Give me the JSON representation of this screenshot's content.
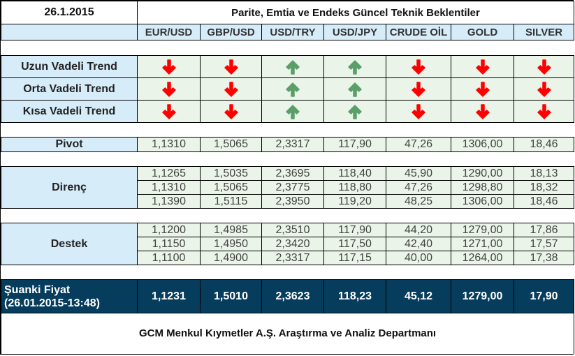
{
  "header": {
    "date": "26.1.2015",
    "title": "Parite, Emtia ve Endeks Güncel Teknik Beklentiler"
  },
  "columns": [
    "EUR/USD",
    "GBP/USD",
    "USD/TRY",
    "USD/JPY",
    "CRUDE OİL",
    "GOLD",
    "SILVER"
  ],
  "colors": {
    "label_bg": "#d7ecf9",
    "cell_bg": "#eaf4e8",
    "current_bg": "#063d5c",
    "arrow_down": "#ff0000",
    "arrow_up": "#5a9e6a"
  },
  "trends": [
    {
      "label": "Uzun Vadeli Trend",
      "directions": [
        "down-arrow-icon",
        "down-arrow-icon",
        "up-arrow-icon",
        "up-arrow-icon",
        "down-arrow-icon",
        "down-arrow-icon",
        "down-arrow-icon"
      ]
    },
    {
      "label": "Orta Vadeli Trend",
      "directions": [
        "down-arrow-icon",
        "down-arrow-icon",
        "up-arrow-icon",
        "up-arrow-icon",
        "down-arrow-icon",
        "down-arrow-icon",
        "down-arrow-icon"
      ]
    },
    {
      "label": "Kısa Vadeli Trend",
      "directions": [
        "down-arrow-icon",
        "down-arrow-icon",
        "up-arrow-icon",
        "up-arrow-icon",
        "down-arrow-icon",
        "down-arrow-icon",
        "down-arrow-icon"
      ]
    }
  ],
  "pivot": {
    "label": "Pivot",
    "values": [
      "1,1310",
      "1,5065",
      "2,3317",
      "117,90",
      "47,26",
      "1306,00",
      "18,46"
    ]
  },
  "resistance": {
    "label": "Direnç",
    "rows": [
      [
        "1,1265",
        "1,5035",
        "2,3695",
        "118,40",
        "45,90",
        "1290,00",
        "18,13"
      ],
      [
        "1,1310",
        "1,5065",
        "2,3775",
        "118,80",
        "47,26",
        "1298,80",
        "18,32"
      ],
      [
        "1,1390",
        "1,5115",
        "2,3950",
        "119,20",
        "48,25",
        "1306,00",
        "18,46"
      ]
    ]
  },
  "support": {
    "label": "Destek",
    "rows": [
      [
        "1,1200",
        "1,4985",
        "2,3510",
        "117,90",
        "44,20",
        "1279,00",
        "17,86"
      ],
      [
        "1,1150",
        "1,4950",
        "2,3420",
        "117,50",
        "42,40",
        "1271,00",
        "17,57"
      ],
      [
        "1,1100",
        "1,4900",
        "2,3317",
        "117,15",
        "40,00",
        "1264,00",
        "17,38"
      ]
    ]
  },
  "current": {
    "label_line1": "Şuanki Fiyat",
    "label_line2": "(26.01.2015-13:48)",
    "values": [
      "1,1231",
      "1,5010",
      "2,3623",
      "118,23",
      "45,12",
      "1279,00",
      "17,90"
    ]
  },
  "footer": {
    "text": "GCM Menkul Kıymetler A.Ş. Araştırma ve Analiz Departmanı"
  }
}
